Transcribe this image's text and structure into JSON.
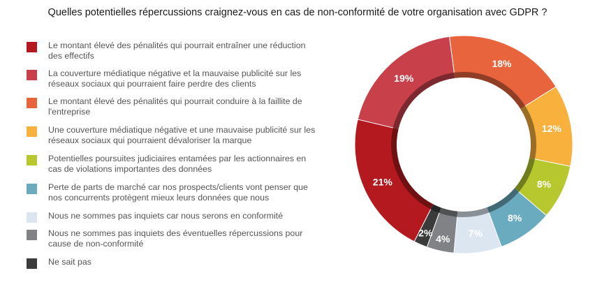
{
  "chart_data": {
    "type": "pie",
    "title": "Quelles potentielles répercussions craignez-vous en cas de non-conformité de votre organisation avec GDPR ?",
    "legend_position": "left",
    "slices": [
      {
        "label": "Le montant élevé des pénalités qui pourrait entraîner une réduction des effectifs",
        "value": 21,
        "display": "21%",
        "color": "#b3191f"
      },
      {
        "label": "La couverture médiatique négative et la mauvaise publicité sur les réseaux sociaux qui pourraient faire perdre des clients",
        "value": 19,
        "display": "19%",
        "color": "#c7404a"
      },
      {
        "label": "Le montant élevé des pénalités qui pourrait conduire à la faillite de l'entreprise",
        "value": 18,
        "display": "18%",
        "color": "#e8643d"
      },
      {
        "label": "Une couverture médiatique négative et une mauvaise publicité sur les réseaux sociaux qui pourraient dévaloriser la marque",
        "value": 12,
        "display": "12%",
        "color": "#f8b13d"
      },
      {
        "label": "Potentielles poursuites judiciaires entamées par les actionnaires en cas de violations importantes des données",
        "value": 8,
        "display": "8%",
        "color": "#b7c82f"
      },
      {
        "label": "Perte de parts de marché car nos prospects/clients vont penser que nos concurrents protègent mieux leurs données que nous",
        "value": 8,
        "display": "8%",
        "color": "#6aabbf"
      },
      {
        "label": "Nous ne sommes pas inquiets car nous serons en conformité",
        "value": 7,
        "display": "7%",
        "color": "#dbe6f0"
      },
      {
        "label": "Nous ne sommes pas inquiets des éventuelles répercussions pour cause de non-conformité",
        "value": 4,
        "display": "4%",
        "color": "#808285"
      },
      {
        "label": "Ne sait pas",
        "value": 2,
        "display": "2%",
        "color": "#3b3b3b"
      }
    ],
    "legend_lines": [
      [
        "Le montant élevé des pénalités qui pourrait entraîner une réduction",
        "des effectifs"
      ],
      [
        "La couverture médiatique négative et la mauvaise publicité sur les",
        "réseaux sociaux qui pourraient faire perdre des clients"
      ],
      [
        "Le montant élevé des pénalités qui pourrait conduire à la faillite de",
        "l'entreprise"
      ],
      [
        "Une couverture médiatique négative et une mauvaise publicité sur les",
        "réseaux sociaux qui pourraient dévaloriser la marque"
      ],
      [
        "Potentielles poursuites judiciaires entamées par les actionnaires en",
        "cas de violations importantes des données"
      ],
      [
        "Perte de parts de marché car nos prospects/clients vont penser que",
        "nos concurrents protègent mieux leurs données que nous"
      ],
      [
        "Nous ne sommes pas inquiets car nous serons en conformité"
      ],
      [
        "Nous ne sommes pas inquiets des éventuelles répercussions pour",
        "cause de non-conformité"
      ],
      [
        "Ne sait pas"
      ]
    ]
  }
}
